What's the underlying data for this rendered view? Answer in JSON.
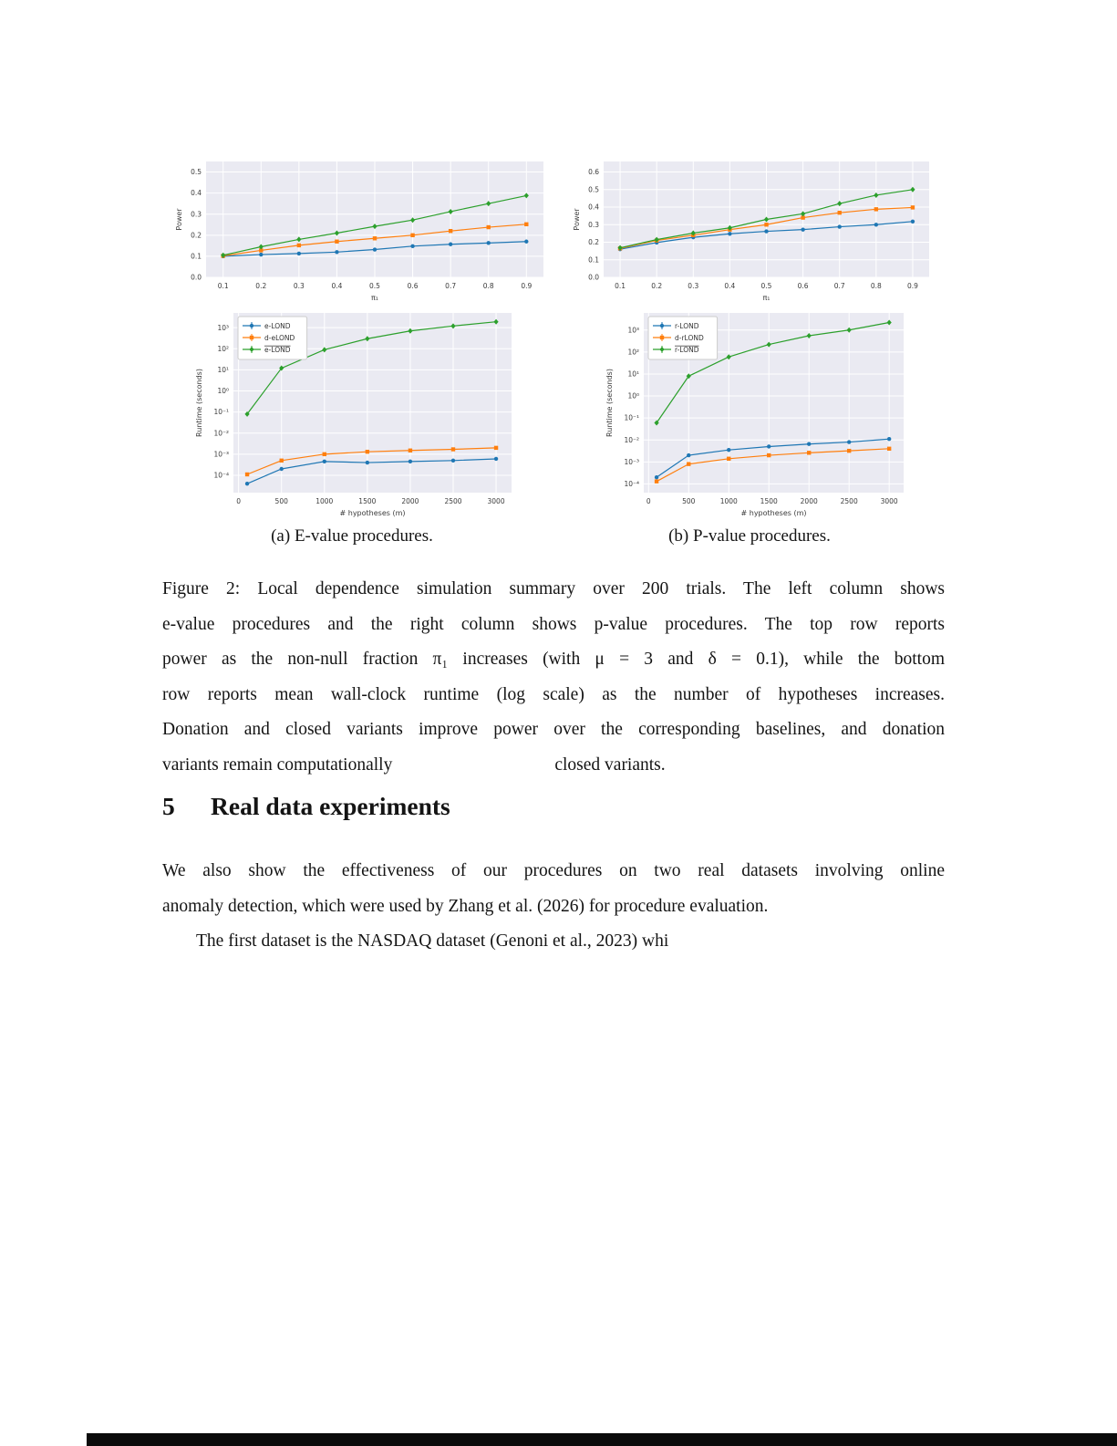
{
  "figure": {
    "subcaption_a": "(a) E-value procedures.",
    "subcaption_b": "(b) P-value procedures.",
    "caption_lines": [
      "Figure 2: Local dependence simulation summary over 200 trials. The left column shows",
      "e-value procedures and the right column shows p-value procedures. The top row reports",
      "power as the non-null fraction π₁ increases (with μ = 3 and δ = 0.1), while the bottom",
      "row reports mean wall-clock runtime (log scale) as the number of hypotheses increases.",
      "Donation and closed variants improve power over the corresponding baselines, and donation"
    ],
    "caption_last": {
      "left": "variants remain computationally",
      "right": "closed variants."
    }
  },
  "section": {
    "number": "5",
    "title": "Real data experiments"
  },
  "body": {
    "p1_lines": [
      "We also show the effectiveness of our procedures on two real datasets involving online",
      "anomaly detection, which were used by Zhang et al. (2026) for procedure evaluation."
    ],
    "p2_line": "The first dataset is the NASDAQ dataset (Genoni et al., 2023) whi"
  },
  "colors": {
    "blue": "#1f77b4",
    "orange": "#ff7f0e",
    "green": "#2ca02c",
    "plot_bg": "#eaeaf2",
    "tick_text": "#3b3b3b"
  },
  "chart_data": [
    {
      "type": "line",
      "title": "",
      "xlabel": "π₁",
      "ylabel": "Power",
      "yscale": "linear",
      "x": [
        0.1,
        0.2,
        0.3,
        0.4,
        0.5,
        0.6,
        0.7,
        0.8,
        0.9
      ],
      "xlim": [
        0.055,
        0.945
      ],
      "xticks": [
        0.1,
        0.2,
        0.3,
        0.4,
        0.5,
        0.6,
        0.7,
        0.8,
        0.9
      ],
      "xtick_labels": [
        "0.1",
        "0.2",
        "0.3",
        "0.4",
        "0.5",
        "0.6",
        "0.7",
        "0.8",
        "0.9"
      ],
      "ylim": [
        0,
        0.55
      ],
      "yticks": [
        0,
        0.1,
        0.2,
        0.3,
        0.4,
        0.5
      ],
      "ytick_labels": [
        "0.0",
        "0.1",
        "0.2",
        "0.3",
        "0.4",
        "0.5"
      ],
      "legend": false,
      "series": [
        {
          "name": "e-LOND",
          "color": "#1f77b4",
          "marker": "circle",
          "values": [
            0.1,
            0.108,
            0.113,
            0.12,
            0.132,
            0.148,
            0.157,
            0.163,
            0.17
          ]
        },
        {
          "name": "d-eLOND",
          "color": "#ff7f0e",
          "marker": "square",
          "values": [
            0.102,
            0.128,
            0.152,
            0.17,
            0.185,
            0.2,
            0.22,
            0.238,
            0.252
          ]
        },
        {
          "name": "e-LOND",
          "overline": true,
          "color": "#2ca02c",
          "marker": "diamond",
          "values": [
            0.105,
            0.145,
            0.18,
            0.21,
            0.242,
            0.272,
            0.312,
            0.35,
            0.388
          ]
        }
      ]
    },
    {
      "type": "line",
      "title": "",
      "xlabel": "π₁",
      "ylabel": "Power",
      "yscale": "linear",
      "x": [
        0.1,
        0.2,
        0.3,
        0.4,
        0.5,
        0.6,
        0.7,
        0.8,
        0.9
      ],
      "xlim": [
        0.055,
        0.945
      ],
      "xticks": [
        0.1,
        0.2,
        0.3,
        0.4,
        0.5,
        0.6,
        0.7,
        0.8,
        0.9
      ],
      "xtick_labels": [
        "0.1",
        "0.2",
        "0.3",
        "0.4",
        "0.5",
        "0.6",
        "0.7",
        "0.8",
        "0.9"
      ],
      "ylim": [
        0,
        0.66
      ],
      "yticks": [
        0,
        0.1,
        0.2,
        0.3,
        0.4,
        0.5,
        0.6
      ],
      "ytick_labels": [
        "0.0",
        "0.1",
        "0.2",
        "0.3",
        "0.4",
        "0.5",
        "0.6"
      ],
      "legend": false,
      "series": [
        {
          "name": "r-LOND",
          "color": "#1f77b4",
          "marker": "circle",
          "values": [
            0.16,
            0.198,
            0.228,
            0.248,
            0.262,
            0.272,
            0.288,
            0.3,
            0.318
          ]
        },
        {
          "name": "d-rLOND",
          "color": "#ff7f0e",
          "marker": "square",
          "values": [
            0.165,
            0.21,
            0.24,
            0.272,
            0.3,
            0.34,
            0.368,
            0.388,
            0.398
          ]
        },
        {
          "name": "r-LOND",
          "overline": true,
          "color": "#2ca02c",
          "marker": "diamond",
          "values": [
            0.168,
            0.215,
            0.252,
            0.282,
            0.33,
            0.362,
            0.42,
            0.468,
            0.5
          ]
        }
      ]
    },
    {
      "type": "line",
      "title": "",
      "xlabel": "# hypotheses (m)",
      "ylabel": "Runtime (seconds)",
      "yscale": "log",
      "x": [
        100,
        500,
        1000,
        1500,
        2000,
        2500,
        3000
      ],
      "xlim": [
        -60,
        3180
      ],
      "xticks": [
        0,
        500,
        1000,
        1500,
        2000,
        2500,
        3000
      ],
      "xtick_labels": [
        "0",
        "500",
        "1000",
        "1500",
        "2000",
        "2500",
        "3000"
      ],
      "ylim": [
        1.5e-05,
        5000.0
      ],
      "yticks": [
        0.0001,
        0.001,
        0.01,
        0.1,
        1,
        10,
        100,
        1000
      ],
      "ytick_labels": [
        "10⁻⁴",
        "10⁻³",
        "10⁻²",
        "10⁻¹",
        "10⁰",
        "10¹",
        "10²",
        "10³"
      ],
      "legend": true,
      "series": [
        {
          "name": "e-LOND",
          "color": "#1f77b4",
          "marker": "circle",
          "values": [
            4e-05,
            0.0002,
            0.00045,
            0.0004,
            0.00045,
            0.0005,
            0.0006
          ]
        },
        {
          "name": "d-eLOND",
          "color": "#ff7f0e",
          "marker": "square",
          "values": [
            0.00011,
            0.0005,
            0.001,
            0.0013,
            0.0015,
            0.0017,
            0.002
          ]
        },
        {
          "name": "e-LOND",
          "overline": true,
          "color": "#2ca02c",
          "marker": "diamond",
          "values": [
            0.08,
            12,
            90,
            300,
            700,
            1200,
            1900
          ]
        }
      ]
    },
    {
      "type": "line",
      "title": "",
      "xlabel": "# hypotheses (m)",
      "ylabel": "Runtime (seconds)",
      "yscale": "log",
      "x": [
        100,
        500,
        1000,
        1500,
        2000,
        2500,
        3000
      ],
      "xlim": [
        -60,
        3180
      ],
      "xticks": [
        0,
        500,
        1000,
        1500,
        2000,
        2500,
        3000
      ],
      "xtick_labels": [
        "0",
        "500",
        "1000",
        "1500",
        "2000",
        "2500",
        "3000"
      ],
      "ylim": [
        4e-05,
        6000.0
      ],
      "yticks": [
        0.0001,
        0.001,
        0.01,
        0.1,
        1,
        10,
        100,
        1000
      ],
      "ytick_labels": [
        "10⁻⁴",
        "10⁻³",
        "10⁻²",
        "10⁻¹",
        "10⁰",
        "10¹",
        "10²",
        "10³"
      ],
      "legend": true,
      "series": [
        {
          "name": "r-LOND",
          "color": "#1f77b4",
          "marker": "circle",
          "values": [
            0.0002,
            0.002,
            0.0035,
            0.005,
            0.0065,
            0.008,
            0.011
          ]
        },
        {
          "name": "d-rLOND",
          "color": "#ff7f0e",
          "marker": "square",
          "values": [
            0.00013,
            0.0008,
            0.0014,
            0.002,
            0.0026,
            0.0032,
            0.004
          ]
        },
        {
          "name": "r-LOND",
          "overline": true,
          "color": "#2ca02c",
          "marker": "diamond",
          "values": [
            0.06,
            8,
            60,
            220,
            550,
            1000,
            2200
          ]
        }
      ]
    }
  ]
}
